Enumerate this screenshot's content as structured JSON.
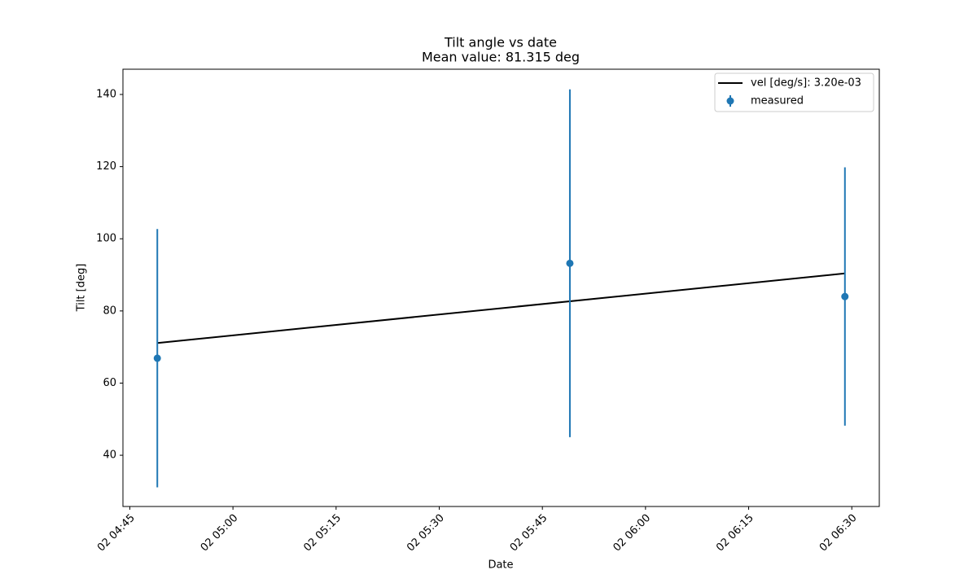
{
  "chart_data": {
    "type": "errorbar",
    "title": "Tilt angle vs date",
    "subtitle": "Mean value: 81.315 deg",
    "x_label": "Date",
    "y_label": "Tilt [deg]",
    "xlim": [
      "02 04:44",
      "02 06:34"
    ],
    "xticks": [
      "02 04:45",
      "02 05:00",
      "02 05:15",
      "02 05:30",
      "02 05:45",
      "02 06:00",
      "02 06:15",
      "02 06:30"
    ],
    "ylim": [
      25.8,
      147.0
    ],
    "yticks": [
      40,
      60,
      80,
      100,
      120,
      140
    ],
    "legend": "upper right",
    "series": [
      {
        "name": "vel [deg/s]: 3.20e-03",
        "type": "line",
        "color": "#000000",
        "x": [
          "02 04:49",
          "02 06:29"
        ],
        "values": [
          71.1,
          90.4
        ]
      },
      {
        "name": "measured",
        "type": "errorbar",
        "color": "#1f77b4",
        "x": [
          "02 04:49",
          "02 05:49",
          "02 06:29"
        ],
        "values": [
          66.9,
          93.2,
          84.0
        ],
        "errors": [
          35.8,
          48.2,
          35.8
        ]
      }
    ]
  }
}
